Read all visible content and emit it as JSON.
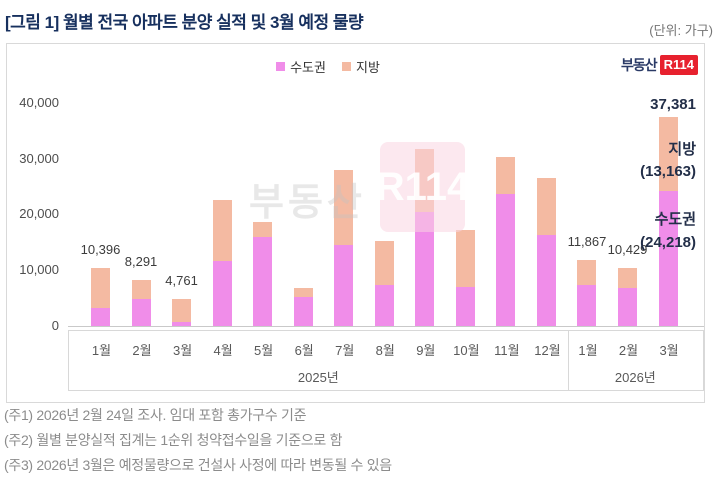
{
  "header": {
    "title": "[그림 1] 월별 전국 아파트 분양 실적 및 3월 예정 물량",
    "unit_label": "(단위: 가구)"
  },
  "legend": [
    {
      "label": "수도권",
      "color": "#F08DE9"
    },
    {
      "label": "지방",
      "color": "#F4BAA2"
    }
  ],
  "brand": {
    "name": "부동산",
    "badge": "R114"
  },
  "watermark": {
    "name": "부동산",
    "badge": "R114"
  },
  "colors": {
    "title_navy": "#17305e",
    "annotation_navy": "#232f49",
    "brand_red": "#e7212e",
    "sudogwon_bar": "#F08DE9",
    "jibang_bar": "#F4BAA2",
    "axis_gray": "#d8d8d8"
  },
  "chart_data": {
    "type": "bar",
    "stacked": true,
    "grid": false,
    "legend_position": "top-center",
    "ylim": [
      0,
      40000
    ],
    "y_ticks": [
      0,
      10000,
      20000,
      30000,
      40000
    ],
    "y_tick_labels": [
      "0",
      "10,000",
      "20,000",
      "30,000",
      "40,000"
    ],
    "groups": [
      {
        "year": "2025년",
        "count": 12
      },
      {
        "year": "2026년",
        "count": 3
      }
    ],
    "categories": [
      "1월",
      "2월",
      "3월",
      "4월",
      "5월",
      "6월",
      "7월",
      "8월",
      "9월",
      "10월",
      "11월",
      "12월",
      "1월",
      "2월",
      "3월"
    ],
    "series": [
      {
        "name": "수도권",
        "color": "#F08DE9",
        "values": [
          3200,
          4900,
          700,
          11600,
          16000,
          5200,
          14500,
          7300,
          20500,
          7000,
          23600,
          16300,
          7300,
          6800,
          24218
        ]
      },
      {
        "name": "지방",
        "color": "#F4BAA2",
        "values": [
          7196,
          3391,
          4061,
          11000,
          2600,
          1600,
          13400,
          8000,
          11300,
          10200,
          6600,
          10300,
          4567,
          3629,
          13163
        ]
      }
    ],
    "total_labels": [
      "10,396",
      "8,291",
      "4,761",
      "",
      "",
      "",
      "",
      "",
      "",
      "",
      "",
      "",
      "11,867",
      "10,429",
      ""
    ]
  },
  "annotations": {
    "total": "37,381",
    "jibang_label": "지방",
    "jibang_value": "(13,163)",
    "sudogwon_label": "수도권",
    "sudogwon_value": "(24,218)"
  },
  "footnotes": [
    "(주1) 2026년 2월 24일 조사. 임대 포함 총가구수 기준",
    "(주2) 월별 분양실적 집계는 1순위 청약접수일을 기준으로 함",
    "(주3) 2026년 3월은 예정물량으로 건설사 사정에 따라 변동될 수 있음"
  ]
}
